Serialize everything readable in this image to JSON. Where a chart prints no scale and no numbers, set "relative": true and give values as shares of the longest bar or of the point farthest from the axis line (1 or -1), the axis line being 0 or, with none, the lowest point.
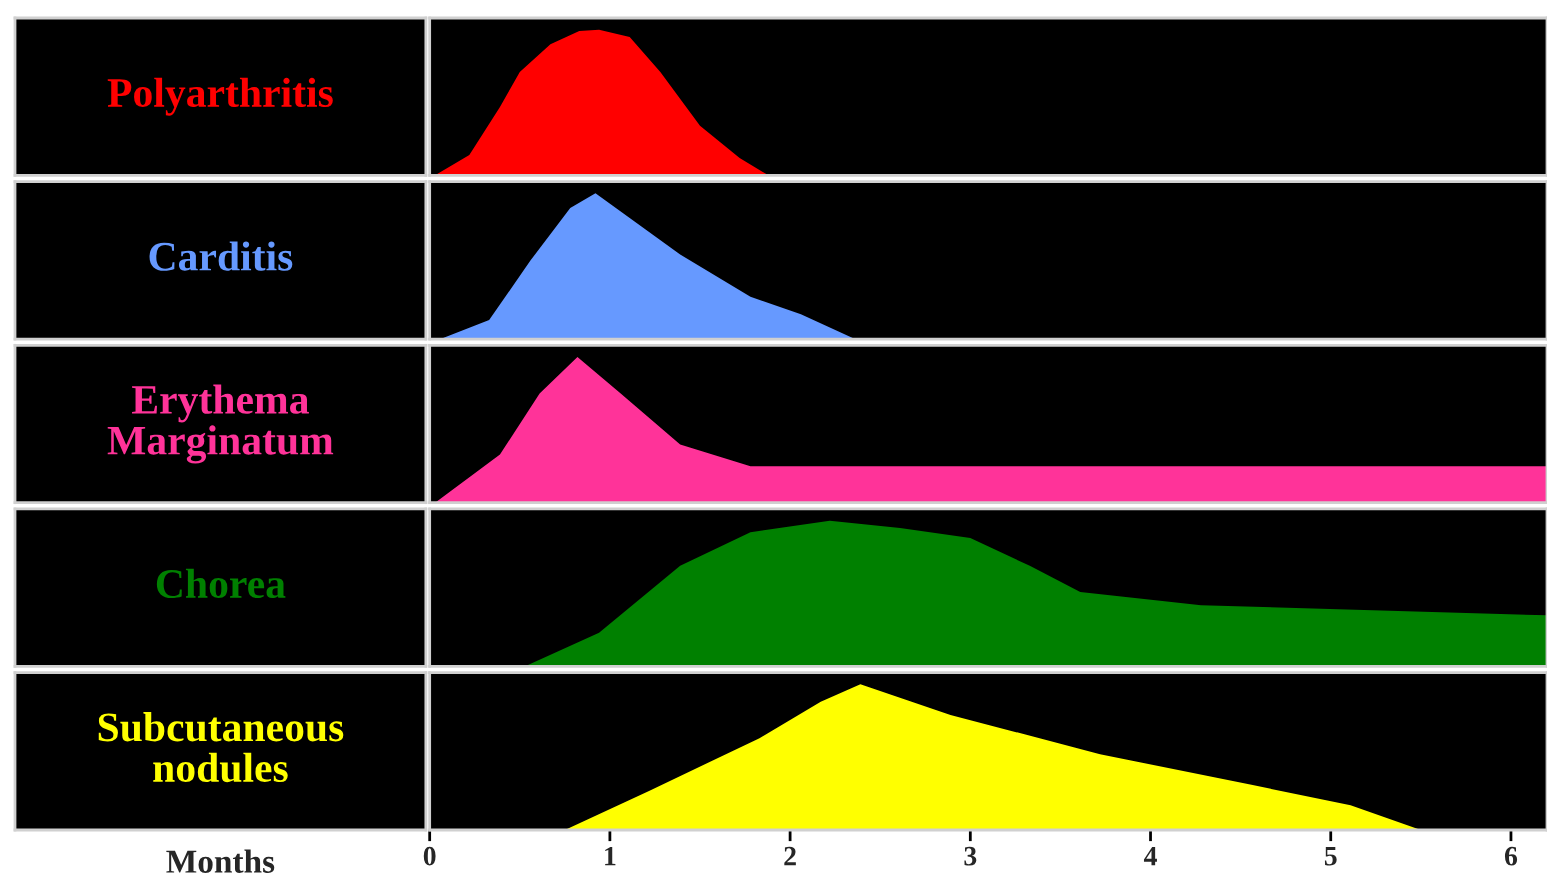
{
  "chart_data": [
    {
      "type": "area",
      "title": "Polyarthritis",
      "relative": true,
      "xlim": [
        0,
        6.2
      ],
      "tick_labels": false,
      "x": [
        0.03,
        0.22,
        0.39,
        0.5,
        0.67,
        0.83,
        0.94,
        1.11,
        1.28,
        1.5,
        1.72,
        1.88
      ],
      "series": [
        {
          "color": "#ff0000",
          "values": [
            0,
            0.14,
            0.47,
            0.71,
            0.9,
            0.99,
            1,
            0.95,
            0.71,
            0.34,
            0.12,
            0
          ]
        }
      ]
    },
    {
      "type": "area",
      "title": "Carditis",
      "relative": true,
      "xlim": [
        0,
        6.2
      ],
      "tick_labels": false,
      "x": [
        0.06,
        0.33,
        0.56,
        0.78,
        0.92,
        1.11,
        1.39,
        1.78,
        2.06,
        2.36
      ],
      "series": [
        {
          "color": "#6699ff",
          "values": [
            0,
            0.13,
            0.54,
            0.9,
            1,
            0.83,
            0.58,
            0.29,
            0.17,
            0
          ]
        }
      ]
    },
    {
      "type": "area",
      "title": "Erythema\nMarginatum",
      "relative": true,
      "xlim": [
        0,
        6.2
      ],
      "tick_labels": false,
      "x": [
        0.03,
        0.39,
        0.61,
        0.82,
        1.06,
        1.39,
        1.78,
        2.06,
        6.2
      ],
      "series": [
        {
          "color": "#ff3399",
          "values": [
            0,
            0.33,
            0.75,
            1,
            0.75,
            0.4,
            0.25,
            0.25,
            0.25
          ]
        }
      ]
    },
    {
      "type": "area",
      "title": "Chorea",
      "relative": true,
      "xlim": [
        0,
        6.2
      ],
      "tick_labels": false,
      "x": [
        0.53,
        0.94,
        1.39,
        1.78,
        2.22,
        2.61,
        3.0,
        3.33,
        3.61,
        4.28,
        6.2
      ],
      "series": [
        {
          "color": "#008000",
          "values": [
            0,
            0.23,
            0.69,
            0.92,
            1,
            0.95,
            0.88,
            0.69,
            0.51,
            0.42,
            0.35
          ]
        }
      ]
    },
    {
      "type": "area",
      "title": "Subcutaneous\nnodules",
      "relative": true,
      "xlim": [
        0,
        6.2
      ],
      "tick_labels": "x",
      "xlabel": "Months",
      "xticks": [
        0,
        1,
        2,
        3,
        4,
        5,
        6
      ],
      "x": [
        0.75,
        1.22,
        1.83,
        2.17,
        2.39,
        2.89,
        3.72,
        4.56,
        5.11,
        5.5
      ],
      "series": [
        {
          "color": "#ffff00",
          "values": [
            0,
            0.27,
            0.63,
            0.88,
            1,
            0.79,
            0.52,
            0.31,
            0.17,
            0
          ]
        }
      ]
    }
  ]
}
